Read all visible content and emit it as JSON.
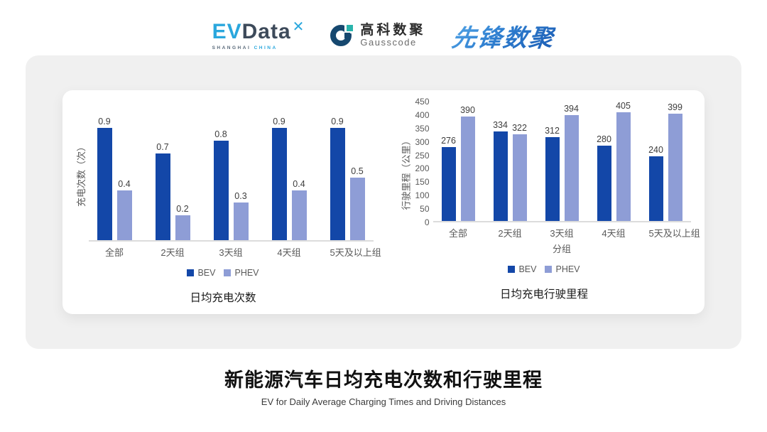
{
  "header": {
    "evdata": {
      "ev": "EV",
      "data": "Data",
      "mark": "✕",
      "sub_left": "SHANGHAI",
      "sub_right": "CHINA"
    },
    "gausscode": {
      "cn": "高科数聚",
      "en": "Gausscode"
    },
    "pioneer": {
      "text": "先锋数聚"
    }
  },
  "colors": {
    "bev": "#1347A8",
    "phev": "#8E9DD6"
  },
  "chart_data": [
    {
      "type": "bar",
      "title": "日均充电次数",
      "ylabel": "充电次数（次）",
      "xlabel": "",
      "categories": [
        "全部",
        "2天组",
        "3天组",
        "4天组",
        "5天及以上组"
      ],
      "series": [
        {
          "name": "BEV",
          "color": "#1347A8",
          "values": [
            0.9,
            0.7,
            0.8,
            0.9,
            0.9
          ]
        },
        {
          "name": "PHEV",
          "color": "#8E9DD6",
          "values": [
            0.4,
            0.2,
            0.3,
            0.4,
            0.5
          ]
        }
      ],
      "ylim": [
        0,
        1.0
      ],
      "yticks": [],
      "legend": [
        "BEV",
        "PHEV"
      ],
      "legend_position": "bottom",
      "grid": false
    },
    {
      "type": "bar",
      "title": "日均充电行驶里程",
      "ylabel": "行驶里程（公里）",
      "xlabel": "分组",
      "categories": [
        "全部",
        "2天组",
        "3天组",
        "4天组",
        "5天及以上组"
      ],
      "series": [
        {
          "name": "BEV",
          "color": "#1347A8",
          "values": [
            276,
            334,
            312,
            280,
            240
          ]
        },
        {
          "name": "PHEV",
          "color": "#8E9DD6",
          "values": [
            390,
            322,
            394,
            405,
            399
          ]
        }
      ],
      "ylim": [
        0,
        450
      ],
      "yticks": [
        450,
        400,
        350,
        300,
        250,
        200,
        150,
        100,
        50,
        0
      ],
      "legend": [
        "BEV",
        "PHEV"
      ],
      "legend_position": "bottom",
      "grid": false
    }
  ],
  "footer": {
    "title": "新能源汽车日均充电次数和行驶里程",
    "subtitle": "EV for Daily Average Charging Times and Driving Distances"
  }
}
